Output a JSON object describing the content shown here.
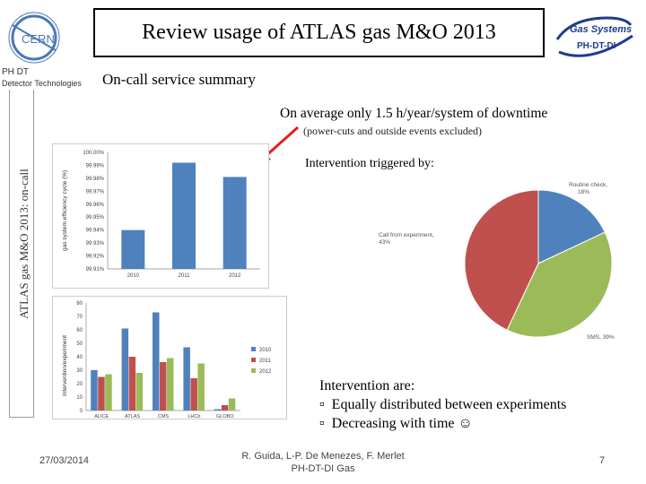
{
  "header": {
    "title": "Review usage of ATLAS gas M&O 2013",
    "subtitle": "On-call service summary",
    "cern_logo_text": "CERN",
    "org_line1": "PH DT",
    "org_line2": "Detector Technologies",
    "gas_logo_line1": "Gas Systems",
    "gas_logo_line2": "PH-DT-DI"
  },
  "side_label": "ATLAS gas M&O 2013: on-call",
  "headline": "On average only 1.5 h/year/system of downtime",
  "note": "(power-cuts and outside events excluded)",
  "intervention_title": "Intervention triggered by:",
  "bullets": {
    "intro": "Intervention are:",
    "items": [
      "Equally distributed between experiments",
      "Decreasing with time ☺"
    ],
    "marker": "▫"
  },
  "footer": {
    "date": "27/03/2014",
    "authors_line1": "R. Guida, L-P. De Menezes, F. Merlet",
    "authors_line2": "PH-DT-DI Gas",
    "page": "7"
  },
  "colors": {
    "blue": "#4f81bd",
    "red": "#c0504d",
    "green": "#9bbb59",
    "gas_logo": "#1f3b8c"
  },
  "chart_data": [
    {
      "type": "bar",
      "categories": [
        "2010",
        "2011",
        "2012"
      ],
      "values": [
        99.94,
        99.992,
        99.981
      ],
      "ylabel": "gas system efficiency cycle (%)",
      "yticks": [
        "99.91%",
        "99.92%",
        "99.93%",
        "99.94%",
        "99.95%",
        "99.96%",
        "99.97%",
        "99.98%",
        "99.99%",
        "100.00%"
      ],
      "ylim": [
        99.91,
        100.0
      ],
      "grid": false
    },
    {
      "type": "bar",
      "categories": [
        "ALICE",
        "ATLAS",
        "CMS",
        "LHCb",
        "GLOBO"
      ],
      "ylabel": "Intervention/experiment",
      "yticks": [
        "0",
        "10",
        "20",
        "30",
        "40",
        "50",
        "60",
        "70",
        "80"
      ],
      "ylim": [
        0,
        80
      ],
      "series": [
        {
          "name": "2010",
          "values": [
            30,
            61,
            73,
            47,
            1
          ]
        },
        {
          "name": "2011",
          "values": [
            25,
            40,
            36,
            24,
            4
          ]
        },
        {
          "name": "2012",
          "values": [
            27,
            28,
            39,
            35,
            9
          ]
        }
      ],
      "legend": "right"
    },
    {
      "type": "pie",
      "labels": [
        "Routine check",
        "Call from experiment",
        "SMS"
      ],
      "label_texts": [
        "Routine check, 18%",
        "Call from experiment, 43%",
        "SMS, 39%"
      ],
      "values": [
        18,
        43,
        39
      ]
    }
  ]
}
